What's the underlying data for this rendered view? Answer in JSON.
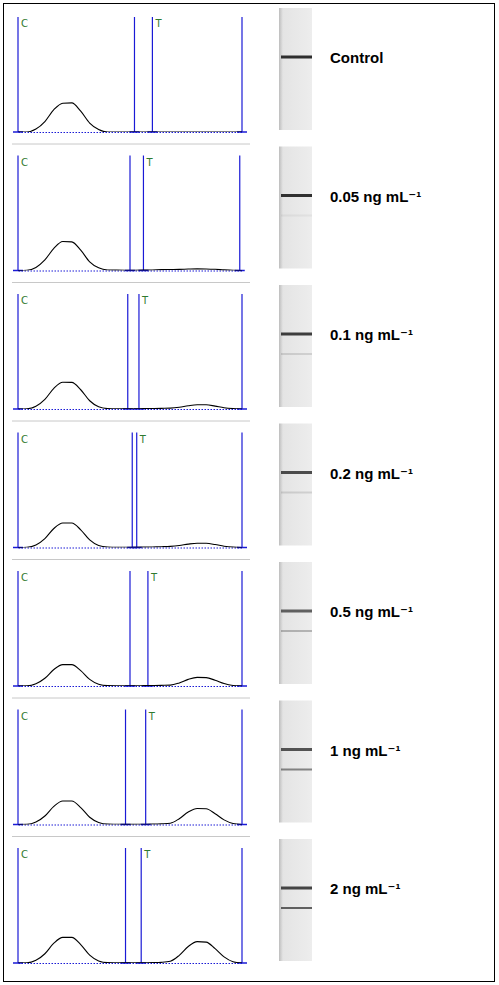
{
  "chart_data": [
    {
      "type": "line",
      "title": "Control",
      "x": [
        0,
        4,
        8,
        12,
        16,
        20,
        24,
        28,
        32,
        36,
        40,
        44,
        48,
        52,
        56,
        60,
        64,
        68,
        72,
        76,
        80,
        84,
        88,
        92,
        96,
        100
      ],
      "series": [
        {
          "color": "#000000",
          "values": [
            0,
            0,
            2.7,
            9.5,
            20.3,
            26.2,
            26.5,
            18.9,
            8.1,
            2.2,
            0,
            0,
            0,
            0,
            0,
            0,
            0,
            0,
            0,
            0,
            0,
            0,
            0,
            0,
            0,
            0
          ]
        }
      ],
      "xlim": [
        0,
        100
      ],
      "ylim": [
        0,
        100
      ],
      "tick_labels": false,
      "markers": [
        {
          "value": 0,
          "label": "C"
        },
        {
          "value": 52
        },
        {
          "value": 60,
          "label": "T"
        },
        {
          "value": 100
        }
      ]
    },
    {
      "type": "line",
      "title": "0.05 ng mL⁻¹",
      "x": [
        0,
        4,
        8,
        12,
        16,
        20,
        24,
        28,
        32,
        36,
        40,
        44,
        48,
        52,
        56,
        60,
        64,
        68,
        72,
        76,
        80,
        84,
        88,
        92,
        96,
        100
      ],
      "series": [
        {
          "color": "#000000",
          "values": [
            0,
            0.2,
            2.8,
            9.6,
            20.1,
            26.3,
            26.0,
            18.5,
            7.9,
            2.4,
            0.5,
            0.3,
            0.2,
            0.2,
            0.3,
            0.5,
            0.8,
            0.9,
            1.0,
            1.3,
            1.5,
            1.4,
            1.1,
            0.6,
            0.2,
            0
          ]
        }
      ],
      "xlim": [
        0,
        100
      ],
      "ylim": [
        0,
        100
      ],
      "tick_labels": false,
      "markers": [
        {
          "value": 0,
          "label": "C"
        },
        {
          "value": 50
        },
        {
          "value": 56,
          "label": "T"
        },
        {
          "value": 99
        }
      ]
    },
    {
      "type": "line",
      "title": "0.1 ng mL⁻¹",
      "x": [
        0,
        4,
        8,
        12,
        16,
        20,
        24,
        28,
        32,
        36,
        40,
        44,
        48,
        52,
        56,
        60,
        64,
        68,
        72,
        76,
        80,
        84,
        88,
        92,
        96,
        100
      ],
      "series": [
        {
          "color": "#000000",
          "values": [
            0,
            0.2,
            2.5,
            8.8,
            18.8,
            24.3,
            24.2,
            17.5,
            7.5,
            2.0,
            0.4,
            0.2,
            0.2,
            0.2,
            0.3,
            0.4,
            0.6,
            0.8,
            1.6,
            3.0,
            3.9,
            3.8,
            2.6,
            1.2,
            0.4,
            0
          ]
        }
      ],
      "xlim": [
        0,
        100
      ],
      "ylim": [
        0,
        100
      ],
      "tick_labels": false,
      "markers": [
        {
          "value": 0,
          "label": "C"
        },
        {
          "value": 49
        },
        {
          "value": 54,
          "label": "T"
        },
        {
          "value": 100
        }
      ]
    },
    {
      "type": "line",
      "title": "0.2 ng mL⁻¹",
      "x": [
        0,
        4,
        8,
        12,
        16,
        20,
        24,
        28,
        32,
        36,
        40,
        44,
        48,
        52,
        56,
        60,
        64,
        68,
        72,
        76,
        80,
        84,
        88,
        92,
        96,
        100
      ],
      "series": [
        {
          "color": "#000000",
          "values": [
            0,
            0.2,
            2.3,
            8.1,
            17.3,
            22.3,
            22.3,
            16.1,
            6.9,
            1.8,
            0.4,
            0.2,
            0.2,
            0.2,
            0.3,
            0.5,
            0.7,
            1.0,
            1.8,
            3.1,
            3.9,
            3.8,
            2.7,
            1.2,
            0.3,
            0
          ]
        }
      ],
      "xlim": [
        0,
        100
      ],
      "ylim": [
        0,
        100
      ],
      "tick_labels": false,
      "markers": [
        {
          "value": 0,
          "label": "C"
        },
        {
          "value": 51
        },
        {
          "value": 53,
          "label": "T"
        },
        {
          "value": 100
        }
      ]
    },
    {
      "type": "line",
      "title": "0.5 ng mL⁻¹",
      "x": [
        0,
        4,
        8,
        12,
        16,
        20,
        24,
        28,
        32,
        36,
        40,
        44,
        48,
        52,
        56,
        60,
        64,
        68,
        72,
        76,
        80,
        84,
        88,
        92,
        96,
        100
      ],
      "series": [
        {
          "color": "#000000",
          "values": [
            0,
            0.1,
            2.0,
            7.0,
            15.0,
            19.4,
            19.4,
            14.0,
            6.0,
            1.6,
            0.3,
            0.2,
            0.2,
            0.2,
            0.3,
            0.4,
            0.6,
            0.8,
            2.8,
            6.0,
            7.8,
            7.6,
            5.2,
            2.2,
            0.5,
            0
          ]
        }
      ],
      "xlim": [
        0,
        100
      ],
      "ylim": [
        0,
        100
      ],
      "tick_labels": false,
      "markers": [
        {
          "value": 0,
          "label": "C"
        },
        {
          "value": 50
        },
        {
          "value": 58,
          "label": "T"
        },
        {
          "value": 100
        }
      ]
    },
    {
      "type": "line",
      "title": "1 ng mL⁻¹",
      "x": [
        0,
        4,
        8,
        12,
        16,
        20,
        24,
        28,
        32,
        36,
        40,
        44,
        48,
        52,
        56,
        60,
        64,
        68,
        72,
        76,
        80,
        84,
        88,
        92,
        96,
        100
      ],
      "series": [
        {
          "color": "#000000",
          "values": [
            0,
            0.1,
            2.2,
            7.7,
            16.5,
            21.3,
            21.3,
            15.4,
            6.6,
            1.8,
            0.3,
            0.2,
            0.1,
            0.1,
            0.2,
            0.3,
            0.6,
            1.2,
            5.3,
            11.3,
            14.6,
            14.3,
            9.8,
            4.2,
            0.9,
            0
          ]
        }
      ],
      "xlim": [
        0,
        100
      ],
      "ylim": [
        0,
        100
      ],
      "tick_labels": false,
      "markers": [
        {
          "value": 0,
          "label": "C"
        },
        {
          "value": 48
        },
        {
          "value": 57,
          "label": "T"
        },
        {
          "value": 100
        }
      ]
    },
    {
      "type": "line",
      "title": "2 ng mL⁻¹",
      "x": [
        0,
        4,
        8,
        12,
        16,
        20,
        24,
        28,
        32,
        36,
        40,
        44,
        48,
        52,
        56,
        60,
        64,
        68,
        72,
        76,
        80,
        84,
        88,
        92,
        96,
        100
      ],
      "series": [
        {
          "color": "#000000",
          "values": [
            0,
            0.1,
            2.4,
            8.4,
            18.0,
            23.3,
            23.3,
            16.8,
            7.2,
            1.9,
            0.3,
            0.2,
            0.1,
            0.1,
            0.2,
            0.3,
            0.6,
            1.6,
            7.0,
            15.0,
            19.4,
            19.0,
            13.0,
            5.6,
            1.2,
            0
          ]
        }
      ],
      "xlim": [
        0,
        100
      ],
      "ylim": [
        0,
        100
      ],
      "tick_labels": false,
      "markers": [
        {
          "value": 0,
          "label": "C"
        },
        {
          "value": 48
        },
        {
          "value": 55,
          "label": "T"
        },
        {
          "value": 100
        }
      ]
    }
  ]
}
